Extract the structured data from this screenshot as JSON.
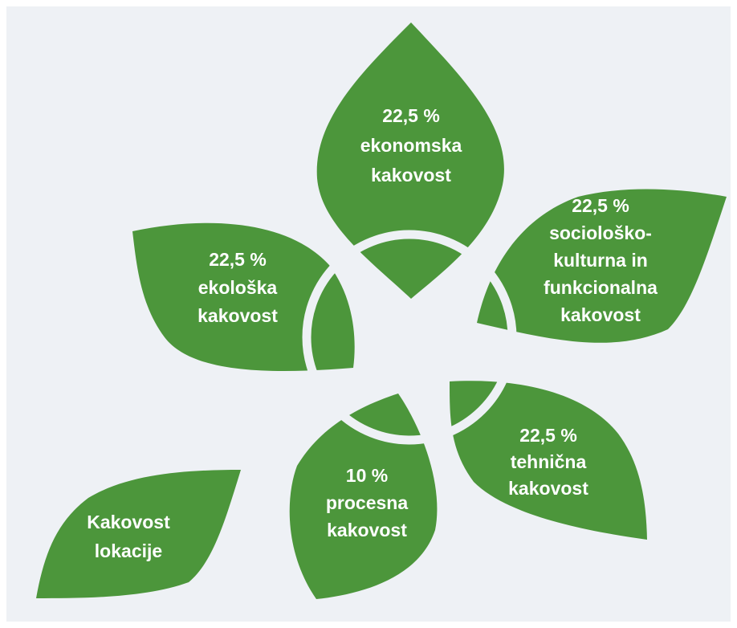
{
  "leaves": [
    {
      "lines": [
        "22,5 %",
        "ekonomska",
        "kakovost"
      ]
    },
    {
      "lines": [
        "22,5 %",
        "ekološka",
        "kakovost"
      ]
    },
    {
      "lines": [
        "22,5 %",
        "sociološko-",
        "kulturna in",
        "funkcionalna",
        "kakovost"
      ]
    },
    {
      "lines": [
        "22,5 %",
        "tehnična",
        "kakovost"
      ]
    },
    {
      "lines": [
        "10 %",
        "procesna",
        "kakovost"
      ]
    },
    {
      "lines": [
        "Kakovost",
        "lokacije"
      ]
    }
  ]
}
